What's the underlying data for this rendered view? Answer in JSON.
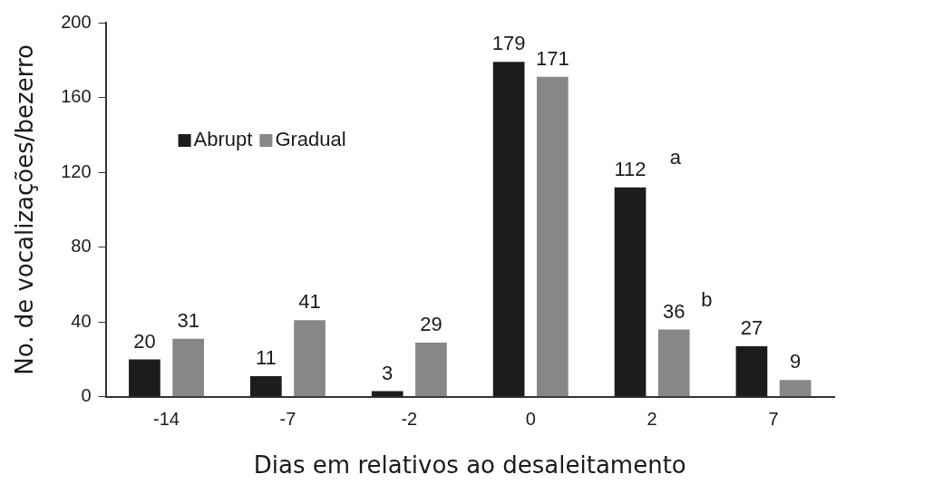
{
  "chart_data": {
    "type": "bar",
    "xlabel": "Dias em relativos ao desaleitamento",
    "ylabel": "No. de vocalizações/bezerro",
    "categories": [
      "-14",
      "-7",
      "-2",
      "0",
      "2",
      "7"
    ],
    "series": [
      {
        "name": "Abrupt",
        "color": "#1c1c1c",
        "values": [
          20,
          11,
          3,
          179,
          112,
          27
        ]
      },
      {
        "name": "Gradual",
        "color": "#878787",
        "values": [
          31,
          41,
          29,
          171,
          36,
          9
        ]
      }
    ],
    "ylim": [
      0,
      200
    ],
    "yticks": [
      0,
      40,
      80,
      120,
      160,
      200
    ],
    "grid": false,
    "legend": "top left",
    "data_labels": true,
    "annotations": [
      "a",
      "b"
    ]
  }
}
